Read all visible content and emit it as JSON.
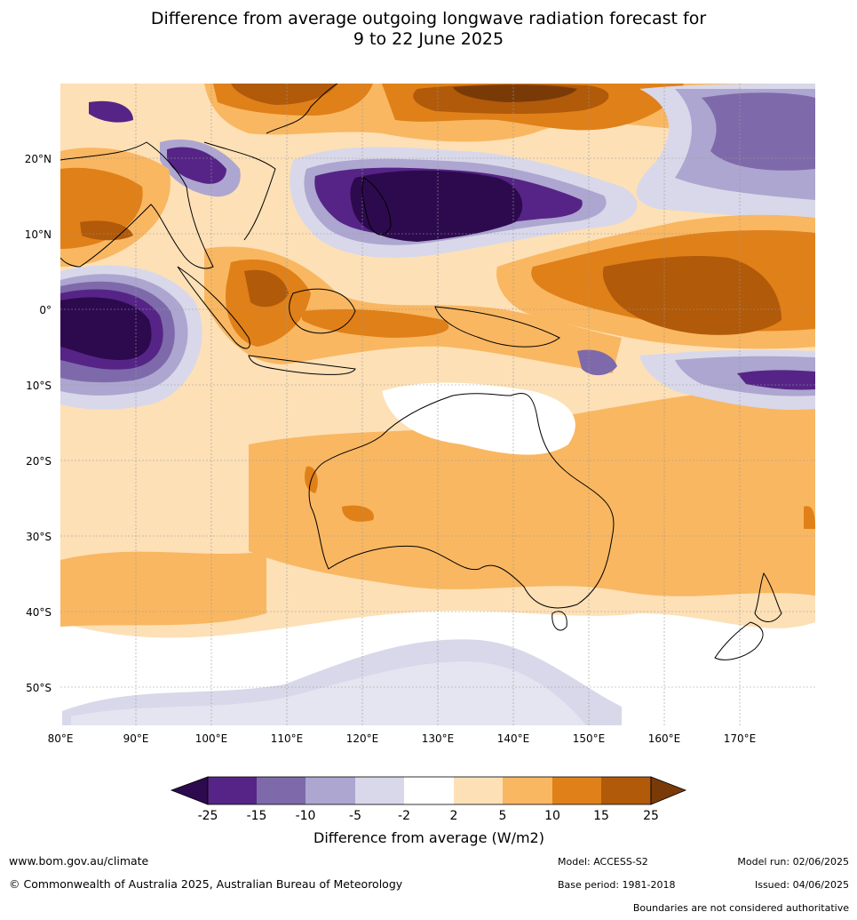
{
  "title_line1": "Difference from average outgoing longwave radiation forecast for",
  "title_line2": "9 to 22 June 2025",
  "lat_labels": [
    "20°N",
    "10°N",
    "0°",
    "10°S",
    "20°S",
    "30°S",
    "40°S",
    "50°S"
  ],
  "lon_labels": [
    "80°E",
    "90°E",
    "100°E",
    "110°E",
    "120°E",
    "130°E",
    "140°E",
    "150°E",
    "160°E",
    "170°E"
  ],
  "legend": {
    "ticks": [
      "-25",
      "-15",
      "-10",
      "-5",
      "-2",
      "2",
      "5",
      "10",
      "15",
      "25"
    ],
    "colors": [
      "#2d0a4e",
      "#562486",
      "#7e6aaa",
      "#ada6d0",
      "#d8d8ea",
      "#ffffff",
      "#fde0b6",
      "#f9b762",
      "#e08018",
      "#b05a0a",
      "#7a3a08"
    ],
    "label": "Difference from average (W/m2)"
  },
  "footer": {
    "website": "www.bom.gov.au/climate",
    "copyright": "© Commonwealth of Australia 2025, Australian Bureau of Meteorology",
    "model": "Model: ACCESS-S2",
    "base_period": "Base period: 1981-2018",
    "model_run": "Model run: 02/06/2025",
    "issued": "Issued: 04/06/2025",
    "boundaries_note": "Boundaries are not considered authoritative"
  }
}
